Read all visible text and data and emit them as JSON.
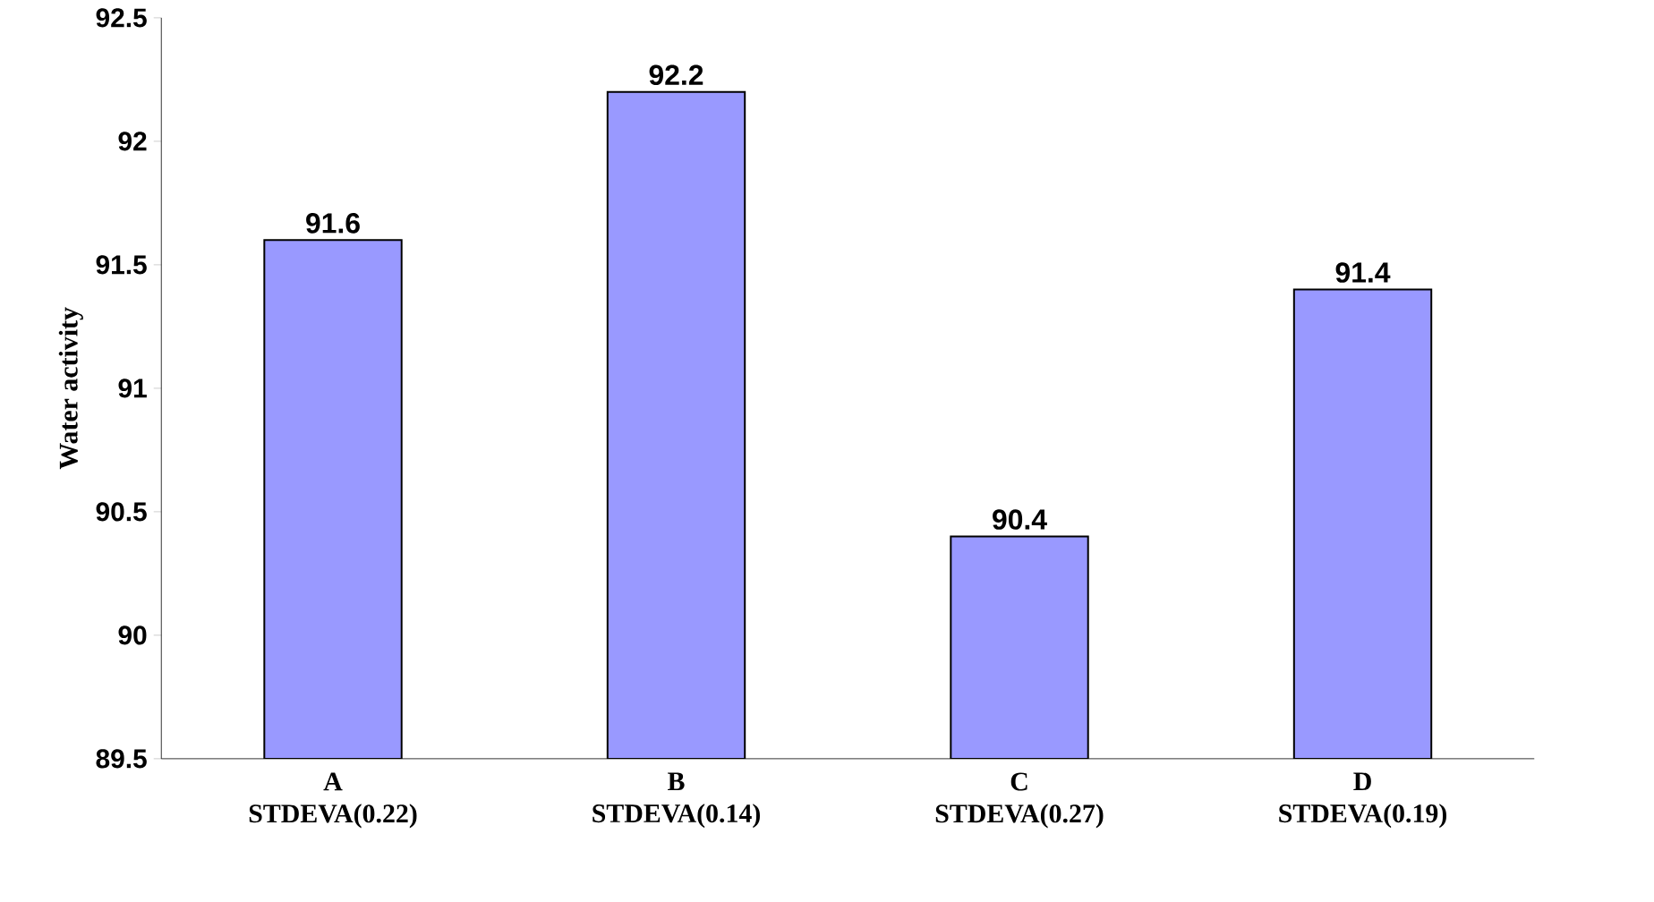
{
  "chart_data": {
    "type": "bar",
    "ylabel": "Water activity",
    "categories": [
      "A STDEVA(0.22)",
      "B STDEVA(0.14)",
      "C STDEVA(0.27)",
      "D STDEVA(0.19)"
    ],
    "values": [
      91.6,
      92.2,
      90.4,
      91.4
    ],
    "color": "#9999ff",
    "ylim": [
      89.5,
      92.5
    ],
    "yticks": [
      89.5,
      90,
      90.5,
      91,
      91.5,
      92,
      92.5
    ],
    "data_labels": true
  }
}
